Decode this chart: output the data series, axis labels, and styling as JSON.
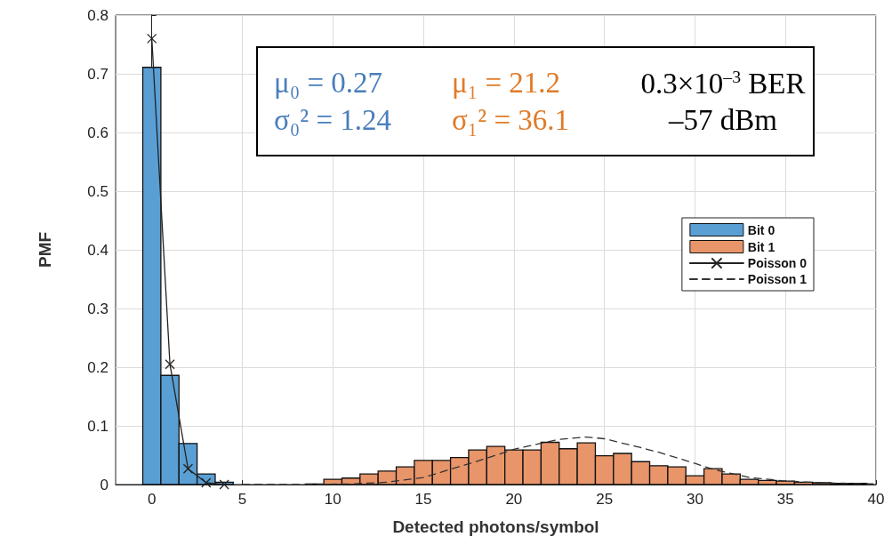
{
  "chart_data": {
    "type": "histogram",
    "xlabel": "Detected photons/symbol",
    "ylabel": "PMF",
    "xlim": [
      -2,
      40
    ],
    "xticks": [
      0,
      5,
      10,
      15,
      20,
      25,
      30,
      35,
      40
    ],
    "ylim": [
      0,
      0.8
    ],
    "yticks": [
      0,
      0.1,
      0.2,
      0.3,
      0.4,
      0.5,
      0.6,
      0.7,
      0.8
    ],
    "grid": true,
    "legend": "right",
    "series": [
      {
        "name": "Bit 0",
        "color": "#5a9fd4",
        "bins": [
          -0.5,
          0.5,
          1.5,
          2.5,
          3.5,
          4.5
        ],
        "values": [
          0.711,
          0.186,
          0.07,
          0.018,
          0.004
        ]
      },
      {
        "name": "Bit 1",
        "color": "#e8956a",
        "bins": [
          7.5,
          8.5,
          9.5,
          10.5,
          11.5,
          12.5,
          13.5,
          14.5,
          15.5,
          16.5,
          17.5,
          18.5,
          19.5,
          20.5,
          21.5,
          22.5,
          23.5,
          24.5,
          25.5,
          26.5,
          27.5,
          28.5,
          29.5,
          30.5,
          31.5,
          32.5,
          33.5,
          34.5,
          35.5,
          36.5,
          37.5,
          38.5,
          39.5
        ],
        "values": [
          null,
          0.001,
          0.009,
          0.011,
          0.018,
          0.023,
          0.03,
          0.041,
          0.041,
          0.046,
          0.059,
          0.065,
          0.059,
          0.059,
          0.072,
          0.061,
          0.071,
          0.049,
          0.053,
          0.039,
          0.032,
          0.03,
          0.015,
          0.027,
          0.018,
          0.009,
          0.007,
          0.006,
          0.004,
          0.003,
          0.002,
          0.002
        ]
      },
      {
        "name": "Poisson 0",
        "type": "line",
        "color": "#222222",
        "marker": "cross",
        "line_style": "solid",
        "x": [
          0,
          1,
          2,
          3,
          4
        ],
        "values": [
          0.76,
          0.205,
          0.027,
          0.003,
          0.0
        ]
      },
      {
        "name": "Poisson 1",
        "type": "line",
        "color": "#333333",
        "marker": "none",
        "line_style": "dashed",
        "x": [
          5,
          8,
          11,
          13,
          15,
          18,
          20,
          21,
          22.5,
          24,
          25,
          27,
          28,
          30,
          31,
          33,
          35,
          37,
          40
        ],
        "values": [
          0.0,
          0.0,
          0.001,
          0.004,
          0.012,
          0.04,
          0.06,
          0.067,
          0.077,
          0.081,
          0.078,
          0.063,
          0.055,
          0.036,
          0.026,
          0.012,
          0.006,
          0.003,
          0.001
        ]
      }
    ],
    "annotations": [
      "μ₀ = 0.27",
      "μ₁ = 21.2",
      "0.3×10$^{–3}$ BER",
      "σ₀² = 1.24",
      "σ₁² = 36.1",
      "–57 dBm"
    ]
  }
}
